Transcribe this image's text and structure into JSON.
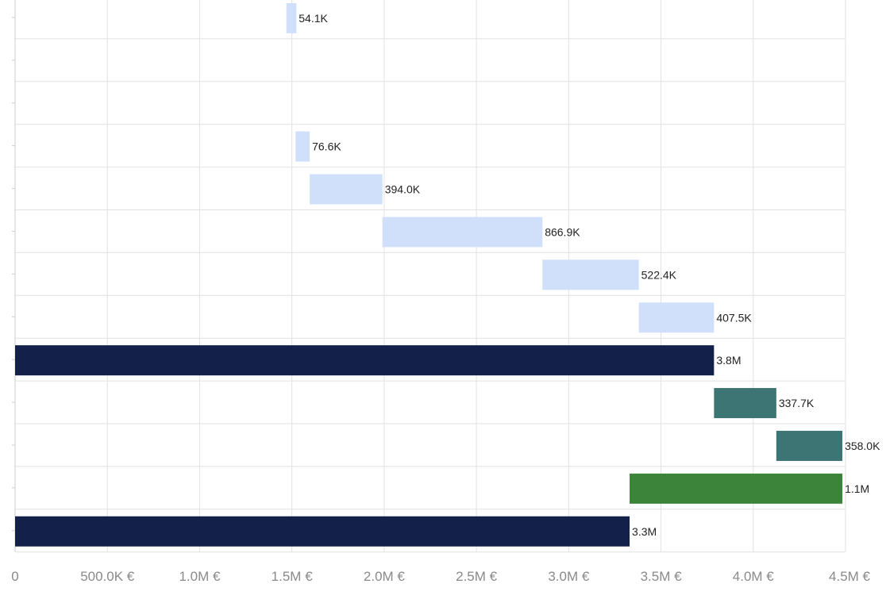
{
  "chart_data": {
    "type": "bar",
    "orientation": "horizontal",
    "subtype": "waterfall",
    "xlim": [
      0,
      4500000
    ],
    "x_ticks": [
      {
        "value": 0,
        "label": "0"
      },
      {
        "value": 500000,
        "label": "500.0K €"
      },
      {
        "value": 1000000,
        "label": "1.0M €"
      },
      {
        "value": 1500000,
        "label": "1.5M €"
      },
      {
        "value": 2000000,
        "label": "2.0M €"
      },
      {
        "value": 2500000,
        "label": "2.5M €"
      },
      {
        "value": 3000000,
        "label": "3.0M €"
      },
      {
        "value": 3500000,
        "label": "3.5M €"
      },
      {
        "value": 4000000,
        "label": "4.0M €"
      },
      {
        "value": 4500000,
        "label": "4.5M €"
      }
    ],
    "bars": [
      {
        "start": 1470000,
        "end": 1524100,
        "label": "54.1K",
        "color": "#d0e0fb"
      },
      {
        "start": null,
        "end": null,
        "label": "",
        "color": ""
      },
      {
        "start": null,
        "end": null,
        "label": "",
        "color": ""
      },
      {
        "start": 1520000,
        "end": 1596600,
        "label": "76.6K",
        "color": "#d0e0fb"
      },
      {
        "start": 1596600,
        "end": 1990600,
        "label": "394.0K",
        "color": "#d0e0fb"
      },
      {
        "start": 1990600,
        "end": 2857500,
        "label": "866.9K",
        "color": "#d0e0fb"
      },
      {
        "start": 2857500,
        "end": 3379900,
        "label": "522.4K",
        "color": "#d0e0fb"
      },
      {
        "start": 3379900,
        "end": 3787400,
        "label": "407.5K",
        "color": "#d0e0fb"
      },
      {
        "start": 0,
        "end": 3787400,
        "label": "3.8M",
        "color": "#13204a"
      },
      {
        "start": 3787400,
        "end": 4125100,
        "label": "337.7K",
        "color": "#3d7474"
      },
      {
        "start": 4125100,
        "end": 4483100,
        "label": "358.0K",
        "color": "#3d7474"
      },
      {
        "start": 3330000,
        "end": 4483100,
        "label": "1.1M",
        "color": "#3c8439"
      },
      {
        "start": 0,
        "end": 3330000,
        "label": "3.3M",
        "color": "#13204a"
      }
    ],
    "grid": true,
    "colors": {
      "increase": "#d0e0fb",
      "total": "#13204a",
      "teal": "#3d7474",
      "green": "#3c8439"
    }
  }
}
